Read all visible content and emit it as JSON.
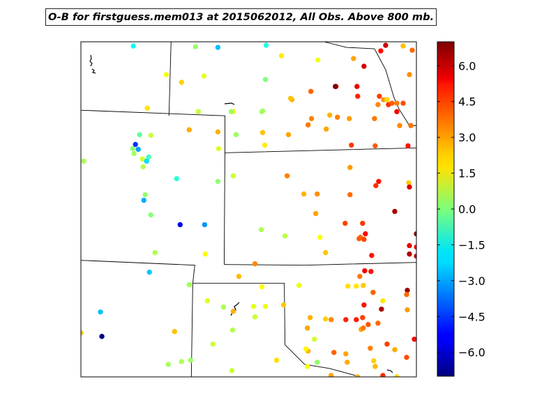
{
  "chart_data": {
    "type": "scatter",
    "title": "O-B for firstguess.mem013 at 2015062012, All Obs. Above 800 mb.",
    "xlim": [
      0,
      480
    ],
    "ylim": [
      0,
      480
    ],
    "colorbar": {
      "range": [
        -7,
        7
      ],
      "ticks": [
        6.0,
        4.5,
        3.0,
        1.5,
        0.0,
        -1.5,
        -3.0,
        -4.5,
        -6.0
      ],
      "tick_labels": [
        "6.0",
        "4.5",
        "3.0",
        "1.5",
        "0.0",
        "−1.5",
        "−3.0",
        "−4.5",
        "−6.0"
      ],
      "colormap": "jet"
    },
    "boundaries": [
      [
        [
          0,
          98
        ],
        [
          206,
          106
        ],
        [
          206,
          159
        ],
        [
          480,
          152
        ]
      ],
      [
        [
          206,
          159
        ],
        [
          205,
          319
        ]
      ],
      [
        [
          129,
          0
        ],
        [
          126,
          106
        ]
      ],
      [
        [
          0,
          313
        ],
        [
          163,
          320
        ],
        [
          160,
          346
        ]
      ],
      [
        [
          160,
          346
        ],
        [
          158,
          480
        ]
      ],
      [
        [
          160,
          346
        ],
        [
          291,
          346
        ],
        [
          292,
          434
        ],
        [
          320,
          462
        ],
        [
          356,
          468
        ],
        [
          400,
          480
        ]
      ],
      [
        [
          205,
          319
        ],
        [
          320,
          320
        ],
        [
          480,
          316
        ]
      ],
      [
        [
          348,
          0
        ],
        [
          380,
          8
        ],
        [
          420,
          10
        ],
        [
          436,
          40
        ],
        [
          448,
          80
        ],
        [
          455,
          96
        ],
        [
          470,
          120
        ],
        [
          480,
          120
        ]
      ]
    ],
    "points": [
      [
        75,
        6,
        -1.6
      ],
      [
        164,
        7,
        0.4
      ],
      [
        196,
        8,
        -2.6
      ],
      [
        265,
        5,
        -1.3
      ],
      [
        287,
        20,
        2.0
      ],
      [
        339,
        26,
        1.5
      ],
      [
        390,
        24,
        3.0
      ],
      [
        436,
        5,
        5.9
      ],
      [
        461,
        6,
        2.6
      ],
      [
        474,
        12,
        3.8
      ],
      [
        429,
        13,
        5.1
      ],
      [
        122,
        47,
        1.6
      ],
      [
        144,
        58,
        2.4
      ],
      [
        176,
        49,
        1.4
      ],
      [
        264,
        54,
        0.0
      ],
      [
        330,
        110,
        3.5
      ],
      [
        365,
        64,
        5.0
      ],
      [
        405,
        35,
        5.8
      ],
      [
        470,
        47,
        3.3
      ],
      [
        440,
        90,
        4.6
      ],
      [
        395,
        64,
        5.5
      ],
      [
        364,
        64,
        7.0
      ],
      [
        329,
        71,
        3.9
      ],
      [
        302,
        83,
        2.8
      ],
      [
        218,
        100,
        1.9
      ],
      [
        396,
        78,
        4.8
      ],
      [
        427,
        78,
        4.4
      ],
      [
        433,
        83,
        3.2
      ],
      [
        438,
        83,
        2.3
      ],
      [
        445,
        88,
        4.0
      ],
      [
        452,
        88,
        3.6
      ],
      [
        425,
        90,
        3.4
      ],
      [
        461,
        88,
        4.2
      ],
      [
        452,
        100,
        5.4
      ],
      [
        420,
        110,
        3.6
      ],
      [
        456,
        120,
        3.4
      ],
      [
        472,
        120,
        3.7
      ],
      [
        95,
        95,
        2.1
      ],
      [
        168,
        100,
        1.0
      ],
      [
        215,
        100,
        0.4
      ],
      [
        259,
        100,
        0.5
      ],
      [
        260,
        99,
        0.5
      ],
      [
        300,
        81,
        2.6
      ],
      [
        356,
        105,
        2.8
      ],
      [
        367,
        108,
        3.5
      ],
      [
        384,
        110,
        3.1
      ],
      [
        325,
        119,
        3.6
      ],
      [
        351,
        125,
        3.0
      ],
      [
        297,
        133,
        3.0
      ],
      [
        260,
        130,
        2.6
      ],
      [
        222,
        133,
        0.4
      ],
      [
        196,
        129,
        2.8
      ],
      [
        155,
        126,
        2.9
      ],
      [
        84,
        133,
        -0.4
      ],
      [
        100,
        134,
        1.0
      ],
      [
        78,
        147,
        -4.6
      ],
      [
        74,
        153,
        0.2
      ],
      [
        82,
        154,
        -3.0
      ],
      [
        76,
        160,
        0.5
      ],
      [
        97,
        165,
        -0.8
      ],
      [
        88,
        168,
        1.1
      ],
      [
        94,
        171,
        -2.2
      ],
      [
        89,
        179,
        0.7
      ],
      [
        197,
        153,
        1.2
      ],
      [
        263,
        148,
        2.0
      ],
      [
        387,
        148,
        4.5
      ],
      [
        421,
        149,
        4.0
      ],
      [
        468,
        149,
        5.0
      ],
      [
        4,
        171,
        0.6
      ],
      [
        218,
        192,
        1.0
      ],
      [
        196,
        200,
        0.2
      ],
      [
        137,
        196,
        -1.2
      ],
      [
        92,
        219,
        0.3
      ],
      [
        90,
        227,
        -2.9
      ],
      [
        100,
        248,
        0.1
      ],
      [
        295,
        192,
        3.5
      ],
      [
        385,
        180,
        3.1
      ],
      [
        319,
        218,
        2.8
      ],
      [
        338,
        218,
        3.3
      ],
      [
        385,
        219,
        3.8
      ],
      [
        422,
        206,
        4.6
      ],
      [
        426,
        200,
        5.0
      ],
      [
        469,
        202,
        2.5
      ],
      [
        470,
        208,
        5.8
      ],
      [
        449,
        243,
        6.4
      ],
      [
        336,
        246,
        3.0
      ],
      [
        378,
        260,
        4.3
      ],
      [
        403,
        260,
        4.5
      ],
      [
        407,
        275,
        5.2
      ],
      [
        400,
        280,
        3.8
      ],
      [
        405,
        283,
        4.3
      ],
      [
        398,
        282,
        4.0
      ],
      [
        416,
        306,
        5.0
      ],
      [
        342,
        280,
        1.7
      ],
      [
        292,
        278,
        0.8
      ],
      [
        258,
        269,
        0.6
      ],
      [
        350,
        302,
        2.5
      ],
      [
        480,
        275,
        6.8
      ],
      [
        142,
        262,
        -5.5
      ],
      [
        177,
        262,
        -3.2
      ],
      [
        106,
        302,
        0.6
      ],
      [
        178,
        304,
        1.8
      ],
      [
        249,
        318,
        3.4
      ],
      [
        470,
        304,
        6.3
      ],
      [
        480,
        307,
        5.9
      ],
      [
        406,
        328,
        5.4
      ],
      [
        415,
        329,
        5.0
      ],
      [
        399,
        336,
        3.6
      ],
      [
        470,
        292,
        5.6
      ],
      [
        480,
        294,
        5.0
      ],
      [
        98,
        330,
        -2.5
      ],
      [
        155,
        348,
        0.5
      ],
      [
        226,
        336,
        2.7
      ],
      [
        259,
        351,
        1.8
      ],
      [
        312,
        349,
        1.5
      ],
      [
        382,
        350,
        2.2
      ],
      [
        394,
        350,
        2.1
      ],
      [
        404,
        349,
        2.5
      ],
      [
        418,
        359,
        3.9
      ],
      [
        405,
        377,
        5.0
      ],
      [
        432,
        371,
        2.1
      ],
      [
        430,
        383,
        6.4
      ],
      [
        467,
        356,
        6.6
      ],
      [
        466,
        362,
        3.8
      ],
      [
        467,
        384,
        3.1
      ],
      [
        181,
        371,
        1.3
      ],
      [
        204,
        380,
        0.6
      ],
      [
        218,
        386,
        2.8
      ],
      [
        247,
        379,
        1.4
      ],
      [
        264,
        379,
        1.5
      ],
      [
        249,
        394,
        1.0
      ],
      [
        290,
        377,
        2.5
      ],
      [
        328,
        395,
        2.8
      ],
      [
        350,
        397,
        2.4
      ],
      [
        358,
        398,
        3.4
      ],
      [
        379,
        398,
        4.8
      ],
      [
        394,
        398,
        4.9
      ],
      [
        403,
        395,
        4.4
      ],
      [
        411,
        405,
        4.1
      ],
      [
        425,
        403,
        3.8
      ],
      [
        401,
        412,
        3.0
      ],
      [
        404,
        410,
        3.6
      ],
      [
        28,
        387,
        -2.6
      ],
      [
        30,
        422,
        -6.9
      ],
      [
        0,
        417,
        2.6
      ],
      [
        134,
        415,
        2.6
      ],
      [
        217,
        413,
        0.7
      ],
      [
        189,
        433,
        1.0
      ],
      [
        125,
        462,
        0.5
      ],
      [
        144,
        458,
        0.6
      ],
      [
        157,
        456,
        0.4
      ],
      [
        216,
        471,
        1.0
      ],
      [
        280,
        456,
        2.2
      ],
      [
        324,
        410,
        3.0
      ],
      [
        325,
        443,
        2.8
      ],
      [
        322,
        440,
        1.9
      ],
      [
        334,
        426,
        1.1
      ],
      [
        362,
        445,
        3.9
      ],
      [
        379,
        447,
        3.0
      ],
      [
        381,
        459,
        2.9
      ],
      [
        414,
        439,
        3.5
      ],
      [
        438,
        433,
        4.4
      ],
      [
        477,
        426,
        5.2
      ],
      [
        466,
        452,
        4.2
      ],
      [
        449,
        441,
        2.9
      ],
      [
        419,
        457,
        2.4
      ],
      [
        421,
        465,
        2.7
      ],
      [
        324,
        465,
        1.6
      ],
      [
        338,
        459,
        0.3
      ],
      [
        358,
        478,
        3.0
      ],
      [
        396,
        480,
        2.8
      ],
      [
        452,
        480,
        2.3
      ],
      [
        432,
        478,
        4.7
      ]
    ]
  }
}
